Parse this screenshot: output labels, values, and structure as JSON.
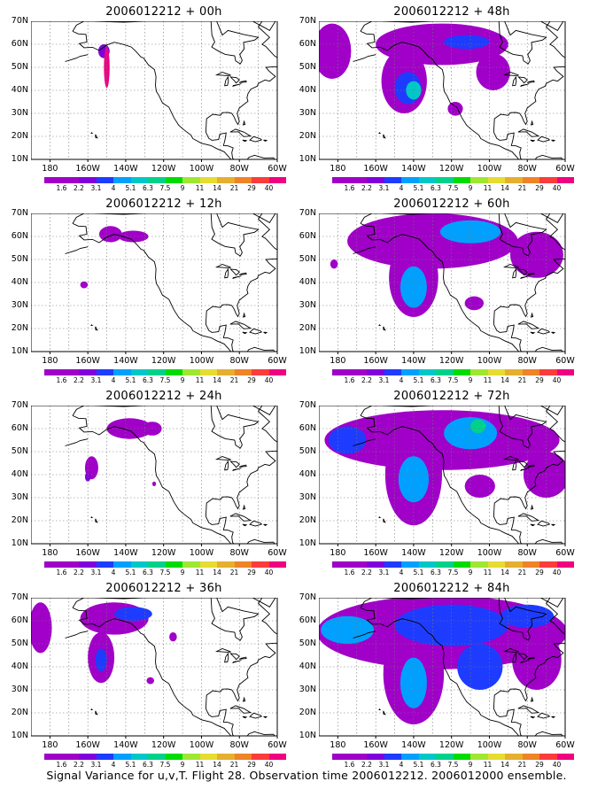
{
  "caption": "Signal Variance for u,v,T. Flight 28. Observation time 2006012212. 2006012000 ensemble.",
  "colorbar": {
    "labels": [
      "1.6",
      "2.2",
      "3.1",
      "4",
      "5.1",
      "6.3",
      "7.5",
      "9",
      "11",
      "14",
      "21",
      "29",
      "40"
    ],
    "colors": [
      "#a000c8",
      "#8200dc",
      "#1e3cff",
      "#00a0ff",
      "#00c8c8",
      "#00d28c",
      "#00dc00",
      "#a0e632",
      "#e6dc32",
      "#e6af2d",
      "#f08228",
      "#fa3c3c",
      "#f00082"
    ]
  },
  "axes": {
    "lat_labels": [
      "70N",
      "60N",
      "50N",
      "40N",
      "30N",
      "20N",
      "10N"
    ],
    "lon_labels": [
      "180",
      "160W",
      "140W",
      "120W",
      "100W",
      "80W",
      "60W"
    ]
  },
  "panels": [
    {
      "title": "2006012212 + 00h"
    },
    {
      "title": "2006012212 + 12h"
    },
    {
      "title": "2006012212 + 24h"
    },
    {
      "title": "2006012212 + 36h"
    },
    {
      "title": "2006012212 + 48h"
    },
    {
      "title": "2006012212 + 60h"
    },
    {
      "title": "2006012212 + 72h"
    },
    {
      "title": "2006012212 + 84h"
    }
  ]
}
